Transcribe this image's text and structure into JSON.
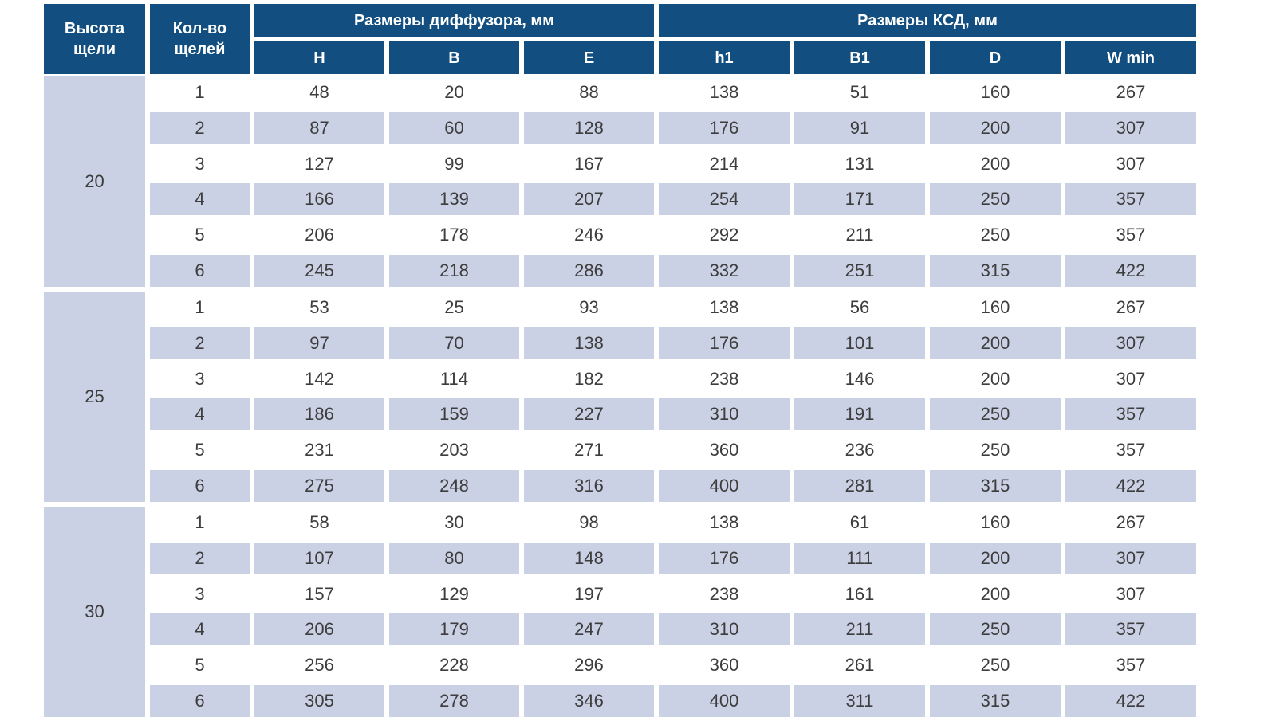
{
  "colors": {
    "header_blue": "#124E7F",
    "row_lavender": "#CBD1E5",
    "body_text": "#3d3d3d"
  },
  "table": {
    "header": {
      "height_label": "Высота щели",
      "count_label": "Кол-во щелей",
      "group_diffuser": "Размеры диффузора, мм",
      "group_ksd": "Размеры КСД, мм",
      "subcolumns": [
        "H",
        "B",
        "E",
        "h1",
        "B1",
        "D",
        "W min"
      ]
    },
    "groups": [
      {
        "slot_height": "20",
        "rows": [
          [
            "1",
            "48",
            "20",
            "88",
            "138",
            "51",
            "160",
            "267"
          ],
          [
            "2",
            "87",
            "60",
            "128",
            "176",
            "91",
            "200",
            "307"
          ],
          [
            "3",
            "127",
            "99",
            "167",
            "214",
            "131",
            "200",
            "307"
          ],
          [
            "4",
            "166",
            "139",
            "207",
            "254",
            "171",
            "250",
            "357"
          ],
          [
            "5",
            "206",
            "178",
            "246",
            "292",
            "211",
            "250",
            "357"
          ],
          [
            "6",
            "245",
            "218",
            "286",
            "332",
            "251",
            "315",
            "422"
          ]
        ]
      },
      {
        "slot_height": "25",
        "rows": [
          [
            "1",
            "53",
            "25",
            "93",
            "138",
            "56",
            "160",
            "267"
          ],
          [
            "2",
            "97",
            "70",
            "138",
            "176",
            "101",
            "200",
            "307"
          ],
          [
            "3",
            "142",
            "114",
            "182",
            "238",
            "146",
            "200",
            "307"
          ],
          [
            "4",
            "186",
            "159",
            "227",
            "310",
            "191",
            "250",
            "357"
          ],
          [
            "5",
            "231",
            "203",
            "271",
            "360",
            "236",
            "250",
            "357"
          ],
          [
            "6",
            "275",
            "248",
            "316",
            "400",
            "281",
            "315",
            "422"
          ]
        ]
      },
      {
        "slot_height": "30",
        "rows": [
          [
            "1",
            "58",
            "30",
            "98",
            "138",
            "61",
            "160",
            "267"
          ],
          [
            "2",
            "107",
            "80",
            "148",
            "176",
            "111",
            "200",
            "307"
          ],
          [
            "3",
            "157",
            "129",
            "197",
            "238",
            "161",
            "200",
            "307"
          ],
          [
            "4",
            "206",
            "179",
            "247",
            "310",
            "211",
            "250",
            "357"
          ],
          [
            "5",
            "256",
            "228",
            "296",
            "360",
            "261",
            "250",
            "357"
          ],
          [
            "6",
            "305",
            "278",
            "346",
            "400",
            "311",
            "315",
            "422"
          ]
        ]
      }
    ]
  }
}
